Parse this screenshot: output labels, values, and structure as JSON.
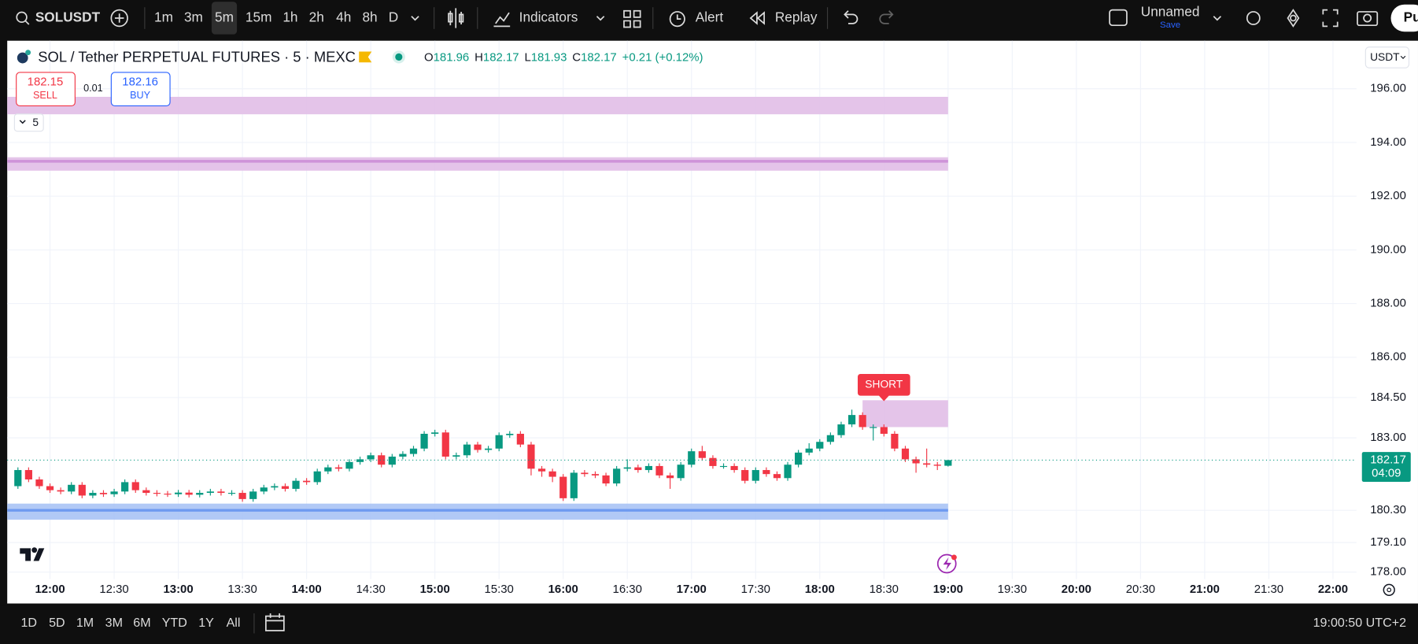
{
  "toolbar": {
    "symbol": "SOLUSDT",
    "intervals": [
      "1m",
      "3m",
      "5m",
      "15m",
      "1h",
      "2h",
      "4h",
      "8h",
      "D"
    ],
    "active_interval": 2,
    "indicators": "Indicators",
    "alert": "Alert",
    "replay": "Replay",
    "layout_name": "Unnamed",
    "save": "Save",
    "publish": "Pu"
  },
  "legend": {
    "title": "SOL / Tether PERPETUAL FUTURES · 5 · MEXC",
    "ohlc": [
      {
        "label": "O",
        "value": "181.96"
      },
      {
        "label": "H",
        "value": "182.17"
      },
      {
        "label": "L",
        "value": "181.93"
      },
      {
        "label": "C",
        "value": "182.17"
      }
    ],
    "change": "+0.21 (+0.12%)"
  },
  "trade": {
    "sell_price": "182.15",
    "sell": "SELL",
    "quantity": "0.01",
    "buy_price": "182.16",
    "buy": "BUY"
  },
  "indicators_count": "5",
  "currency": "USDT",
  "chart_data": {
    "type": "candlestick",
    "x": [
      "11:45",
      "11:50",
      "11:55",
      "12:00",
      "12:05",
      "12:10",
      "12:15",
      "12:20",
      "12:25",
      "12:30",
      "12:35",
      "12:40",
      "12:45",
      "12:50",
      "12:55",
      "13:00",
      "13:05",
      "13:10",
      "13:15",
      "13:20",
      "13:25",
      "13:30",
      "13:35",
      "13:40",
      "13:45",
      "13:50",
      "13:55",
      "14:00",
      "14:05",
      "14:10",
      "14:15",
      "14:20",
      "14:25",
      "14:30",
      "14:35",
      "14:40",
      "14:45",
      "14:50",
      "14:55",
      "15:00",
      "15:05",
      "15:10",
      "15:15",
      "15:20",
      "15:25",
      "15:30",
      "15:35",
      "15:40",
      "15:45",
      "15:50",
      "15:55",
      "16:00",
      "16:05",
      "16:10",
      "16:15",
      "16:20",
      "16:25",
      "16:30",
      "16:35",
      "16:40",
      "16:45",
      "16:50",
      "16:55",
      "17:00",
      "17:05",
      "17:10",
      "17:15",
      "17:20",
      "17:25",
      "17:30",
      "17:35",
      "17:40",
      "17:45",
      "17:50",
      "17:55",
      "18:00",
      "18:05",
      "18:10",
      "18:15",
      "18:20",
      "18:25",
      "18:30",
      "18:35",
      "18:40",
      "18:45",
      "18:50",
      "18:55",
      "19:00"
    ],
    "open": [
      181.2,
      181.8,
      181.45,
      181.2,
      181.05,
      181.0,
      181.25,
      180.85,
      180.95,
      180.9,
      181.0,
      181.35,
      181.05,
      180.95,
      180.92,
      180.9,
      180.96,
      180.88,
      180.95,
      181.0,
      180.95,
      180.95,
      180.72,
      181.0,
      181.15,
      181.2,
      181.1,
      181.4,
      181.35,
      181.75,
      181.9,
      181.85,
      182.1,
      182.2,
      182.35,
      182.0,
      182.3,
      182.4,
      182.6,
      183.15,
      183.2,
      182.3,
      182.35,
      182.75,
      182.55,
      182.6,
      183.1,
      183.15,
      182.75,
      181.85,
      181.75,
      181.55,
      180.75,
      181.7,
      181.65,
      181.6,
      181.3,
      181.85,
      181.9,
      181.8,
      181.95,
      181.6,
      181.5,
      182.0,
      182.5,
      182.25,
      181.95,
      181.95,
      181.8,
      181.4,
      181.8,
      181.65,
      181.5,
      182.0,
      182.45,
      182.6,
      182.85,
      183.1,
      183.5,
      183.85,
      183.4,
      183.4,
      183.15,
      182.6,
      182.2,
      182.05,
      182.0,
      181.96
    ],
    "high": [
      181.9,
      181.9,
      181.55,
      181.3,
      181.15,
      181.35,
      181.35,
      181.05,
      181.05,
      181.1,
      181.45,
      181.45,
      181.15,
      181.05,
      181.02,
      181.06,
      181.06,
      181.05,
      181.1,
      181.1,
      181.05,
      181.05,
      181.1,
      181.25,
      181.3,
      181.3,
      181.5,
      181.5,
      181.85,
      182.0,
      182.0,
      182.2,
      182.3,
      182.45,
      182.45,
      182.4,
      182.5,
      182.7,
      183.25,
      183.3,
      183.3,
      182.45,
      182.85,
      182.85,
      182.7,
      183.2,
      183.25,
      183.25,
      182.85,
      181.95,
      181.85,
      181.65,
      181.8,
      181.8,
      181.75,
      181.7,
      181.95,
      182.2,
      182.0,
      182.05,
      182.05,
      181.7,
      182.1,
      182.6,
      182.7,
      182.35,
      182.05,
      182.05,
      181.9,
      181.9,
      181.9,
      181.75,
      182.1,
      182.55,
      182.8,
      182.95,
      183.2,
      183.6,
      184.05,
      183.95,
      183.5,
      183.5,
      183.25,
      182.7,
      182.3,
      182.6,
      182.1,
      182.17
    ],
    "low": [
      181.1,
      181.35,
      181.1,
      180.95,
      180.9,
      180.9,
      180.75,
      180.75,
      180.8,
      180.8,
      180.9,
      180.95,
      180.85,
      180.82,
      180.8,
      180.8,
      180.78,
      180.78,
      180.85,
      180.85,
      180.85,
      180.62,
      180.62,
      180.9,
      181.05,
      181.0,
      181.0,
      181.25,
      181.25,
      181.65,
      181.75,
      181.75,
      182.0,
      182.1,
      181.9,
      181.9,
      182.2,
      182.3,
      182.5,
      183.05,
      182.2,
      182.2,
      182.25,
      182.45,
      182.45,
      182.5,
      183.0,
      182.65,
      181.6,
      181.55,
      181.35,
      180.65,
      180.65,
      181.55,
      181.5,
      181.2,
      181.2,
      181.75,
      181.7,
      181.7,
      181.5,
      181.1,
      181.4,
      181.9,
      182.15,
      181.85,
      181.85,
      181.7,
      181.3,
      181.3,
      181.55,
      181.4,
      181.4,
      181.9,
      182.35,
      182.5,
      182.75,
      183.0,
      183.4,
      183.3,
      182.9,
      183.05,
      182.5,
      182.1,
      181.7,
      181.9,
      181.8,
      181.93
    ],
    "close": [
      181.8,
      181.45,
      181.2,
      181.05,
      181.0,
      181.25,
      180.85,
      180.95,
      180.9,
      181.0,
      181.35,
      181.05,
      180.95,
      180.92,
      180.9,
      180.96,
      180.88,
      180.95,
      181.0,
      180.95,
      180.95,
      180.72,
      181.0,
      181.15,
      181.2,
      181.1,
      181.4,
      181.35,
      181.75,
      181.9,
      181.85,
      182.1,
      182.2,
      182.35,
      182.0,
      182.3,
      182.4,
      182.6,
      183.15,
      183.2,
      182.3,
      182.35,
      182.75,
      182.55,
      182.6,
      183.1,
      183.15,
      182.75,
      181.85,
      181.75,
      181.55,
      180.75,
      181.7,
      181.65,
      181.6,
      181.3,
      181.85,
      181.9,
      181.8,
      181.95,
      181.6,
      181.5,
      182.0,
      182.5,
      182.25,
      181.95,
      181.95,
      181.8,
      181.4,
      181.8,
      181.65,
      181.5,
      182.0,
      182.45,
      182.6,
      182.85,
      183.1,
      183.5,
      183.85,
      183.4,
      183.4,
      183.15,
      182.6,
      182.2,
      182.05,
      182.0,
      181.96,
      182.17
    ],
    "up_color": "#089981",
    "down_color": "#f23645",
    "xlim": [
      "11:40",
      "22:11"
    ],
    "xticks": [
      "12:00",
      "12:30",
      "13:00",
      "13:30",
      "14:00",
      "14:30",
      "15:00",
      "15:30",
      "16:00",
      "16:30",
      "17:00",
      "17:30",
      "18:00",
      "18:30",
      "19:00",
      "19:30",
      "20:00",
      "20:30",
      "21:00",
      "21:30",
      "22:00"
    ],
    "ylim": [
      177.74,
      197.79
    ],
    "yticks": [
      {
        "value": 196,
        "label": "196.00"
      },
      {
        "value": 194,
        "label": "194.00"
      },
      {
        "value": 192,
        "label": "192.00"
      },
      {
        "value": 190,
        "label": "190.00"
      },
      {
        "value": 188,
        "label": "188.00"
      },
      {
        "value": 186,
        "label": "186.00"
      },
      {
        "value": 184.5,
        "label": "184.50"
      },
      {
        "value": 183,
        "label": "183.00"
      },
      {
        "value": 180.3,
        "label": "180.30"
      },
      {
        "value": 179.1,
        "label": "179.10"
      },
      {
        "value": 178,
        "label": "178.00"
      }
    ],
    "grid": true,
    "last_price": 182.17,
    "countdown": "04:09",
    "zones": [
      {
        "low": 195.05,
        "high": 195.7,
        "color": "#e1bee7",
        "end": "19:00"
      },
      {
        "low": 192.95,
        "high": 193.45,
        "line": 193.3,
        "color": "#e1bee7",
        "line_color": "#ce93d8",
        "end": "19:00"
      },
      {
        "low": 179.95,
        "high": 180.55,
        "line": 180.3,
        "color": "#a9c3f5",
        "line_color": "#6e9af0",
        "end": "19:00"
      },
      {
        "low": 183.4,
        "high": 184.4,
        "color": "#e1bee7",
        "start": "18:20",
        "end": "19:00"
      }
    ],
    "signal": {
      "label": "SHORT",
      "time": "18:30",
      "price": 184.4
    }
  },
  "bottom_bar": {
    "ranges": [
      "1D",
      "5D",
      "1M",
      "3M",
      "6M",
      "YTD",
      "1Y",
      "All"
    ],
    "clock": "19:00:50 UTC+2"
  }
}
